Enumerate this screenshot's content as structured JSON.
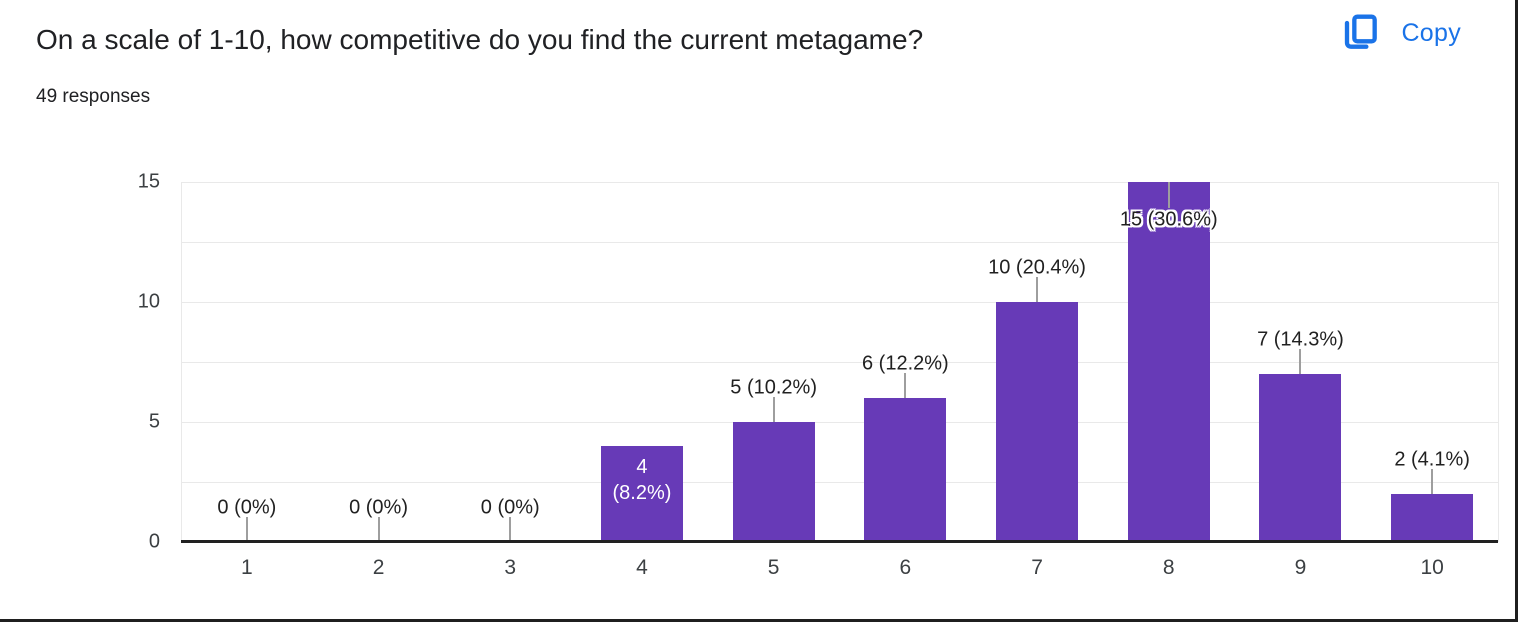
{
  "header": {
    "title": "On a scale of 1-10, how competitive do you find the current metagame?",
    "responses": "49 responses",
    "copy_label": "Copy",
    "accent_color": "#1a73e8"
  },
  "chart_data": {
    "type": "bar",
    "title": "On a scale of 1-10, how competitive do you find the current metagame?",
    "total_responses": 49,
    "categories": [
      "1",
      "2",
      "3",
      "4",
      "5",
      "6",
      "7",
      "8",
      "9",
      "10"
    ],
    "values": [
      0,
      0,
      0,
      4,
      5,
      6,
      10,
      15,
      7,
      2
    ],
    "percentages": [
      0,
      0,
      0,
      8.2,
      10.2,
      12.2,
      20.4,
      30.6,
      14.3,
      4.1
    ],
    "labels": [
      "0 (0%)",
      "0 (0%)",
      "0 (0%)",
      "4 (8.2%)",
      "5 (10.2%)",
      "6 (12.2%)",
      "10 (20.4%)",
      "15 (30.6%)",
      "7 (14.3%)",
      "2 (4.1%)"
    ],
    "label_placement": [
      "above",
      "above",
      "above",
      "inside",
      "above",
      "above",
      "above",
      "overlap",
      "above",
      "above"
    ],
    "xlabel": "",
    "ylabel": "",
    "y_ticks": [
      0,
      5,
      10,
      15
    ],
    "ylim": [
      0,
      15
    ],
    "grid": true,
    "grid_step": 2.5,
    "legend": "none",
    "bar_color": "#673ab7",
    "label_color": "#212121",
    "axis_label_color": "#3c4043",
    "gridline_color": "#e9e9e9"
  }
}
